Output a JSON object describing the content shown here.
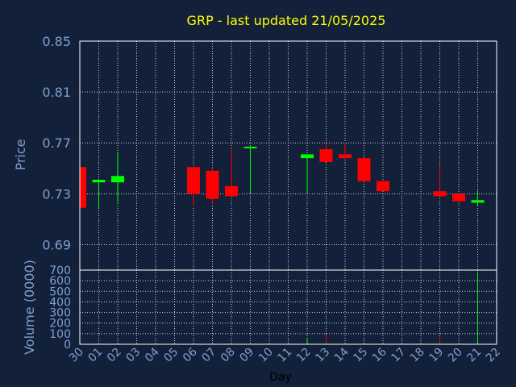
{
  "colors": {
    "background": "#13203a",
    "frame": "#ffffff",
    "grid": "#ffffff",
    "title": "#ffff00",
    "axis_text": "#7f9fce",
    "day_label": "#000000",
    "up": "#00ff00",
    "down": "#ff0000"
  },
  "chart_data": {
    "type": "candlestick",
    "title": "GRP - last updated 21/05/2025",
    "xlabel": "Day",
    "x_ticks": [
      "30",
      "01",
      "02",
      "03",
      "04",
      "05",
      "06",
      "07",
      "08",
      "09",
      "10",
      "11",
      "12",
      "13",
      "14",
      "15",
      "16",
      "17",
      "18",
      "19",
      "20",
      "21",
      "22"
    ],
    "grid": true,
    "price_panel": {
      "ylabel": "Price",
      "ylim": [
        0.67,
        0.85
      ],
      "y_ticks": [
        "0.85",
        "0.81",
        "0.77",
        "0.73",
        "0.69"
      ],
      "candles": [
        {
          "day": "30",
          "open": 0.751,
          "high": 0.751,
          "low": 0.719,
          "close": 0.719
        },
        {
          "day": "01",
          "open": 0.739,
          "high": 0.74,
          "low": 0.719,
          "close": 0.741
        },
        {
          "day": "02",
          "open": 0.739,
          "high": 0.763,
          "low": 0.723,
          "close": 0.744
        },
        {
          "day": "06",
          "open": 0.751,
          "high": 0.751,
          "low": 0.72,
          "close": 0.73
        },
        {
          "day": "07",
          "open": 0.748,
          "high": 0.751,
          "low": 0.722,
          "close": 0.726
        },
        {
          "day": "08",
          "open": 0.736,
          "high": 0.765,
          "low": 0.728,
          "close": 0.728
        },
        {
          "day": "09",
          "open": 0.766,
          "high": 0.767,
          "low": 0.73,
          "close": 0.767
        },
        {
          "day": "12",
          "open": 0.758,
          "high": 0.761,
          "low": 0.73,
          "close": 0.761
        },
        {
          "day": "13",
          "open": 0.765,
          "high": 0.771,
          "low": 0.755,
          "close": 0.755
        },
        {
          "day": "14",
          "open": 0.761,
          "high": 0.77,
          "low": 0.758,
          "close": 0.758
        },
        {
          "day": "15",
          "open": 0.758,
          "high": 0.758,
          "low": 0.74,
          "close": 0.74
        },
        {
          "day": "16",
          "open": 0.74,
          "high": 0.74,
          "low": 0.732,
          "close": 0.732
        },
        {
          "day": "19",
          "open": 0.732,
          "high": 0.752,
          "low": 0.728,
          "close": 0.728
        },
        {
          "day": "20",
          "open": 0.73,
          "high": 0.73,
          "low": 0.724,
          "close": 0.724
        },
        {
          "day": "21",
          "open": 0.723,
          "high": 0.733,
          "low": 0.72,
          "close": 0.725
        }
      ]
    },
    "volume_panel": {
      "ylabel": "Volume (0000)",
      "ylim": [
        0,
        700
      ],
      "y_ticks": [
        "700",
        "600",
        "500",
        "400",
        "300",
        "200",
        "100",
        "0"
      ],
      "bars": [
        {
          "day": "12",
          "value": 60,
          "color": "up"
        },
        {
          "day": "13",
          "value": 100,
          "color": "down"
        },
        {
          "day": "19",
          "value": 70,
          "color": "down"
        },
        {
          "day": "21",
          "value": 680,
          "color": "up"
        }
      ]
    }
  }
}
